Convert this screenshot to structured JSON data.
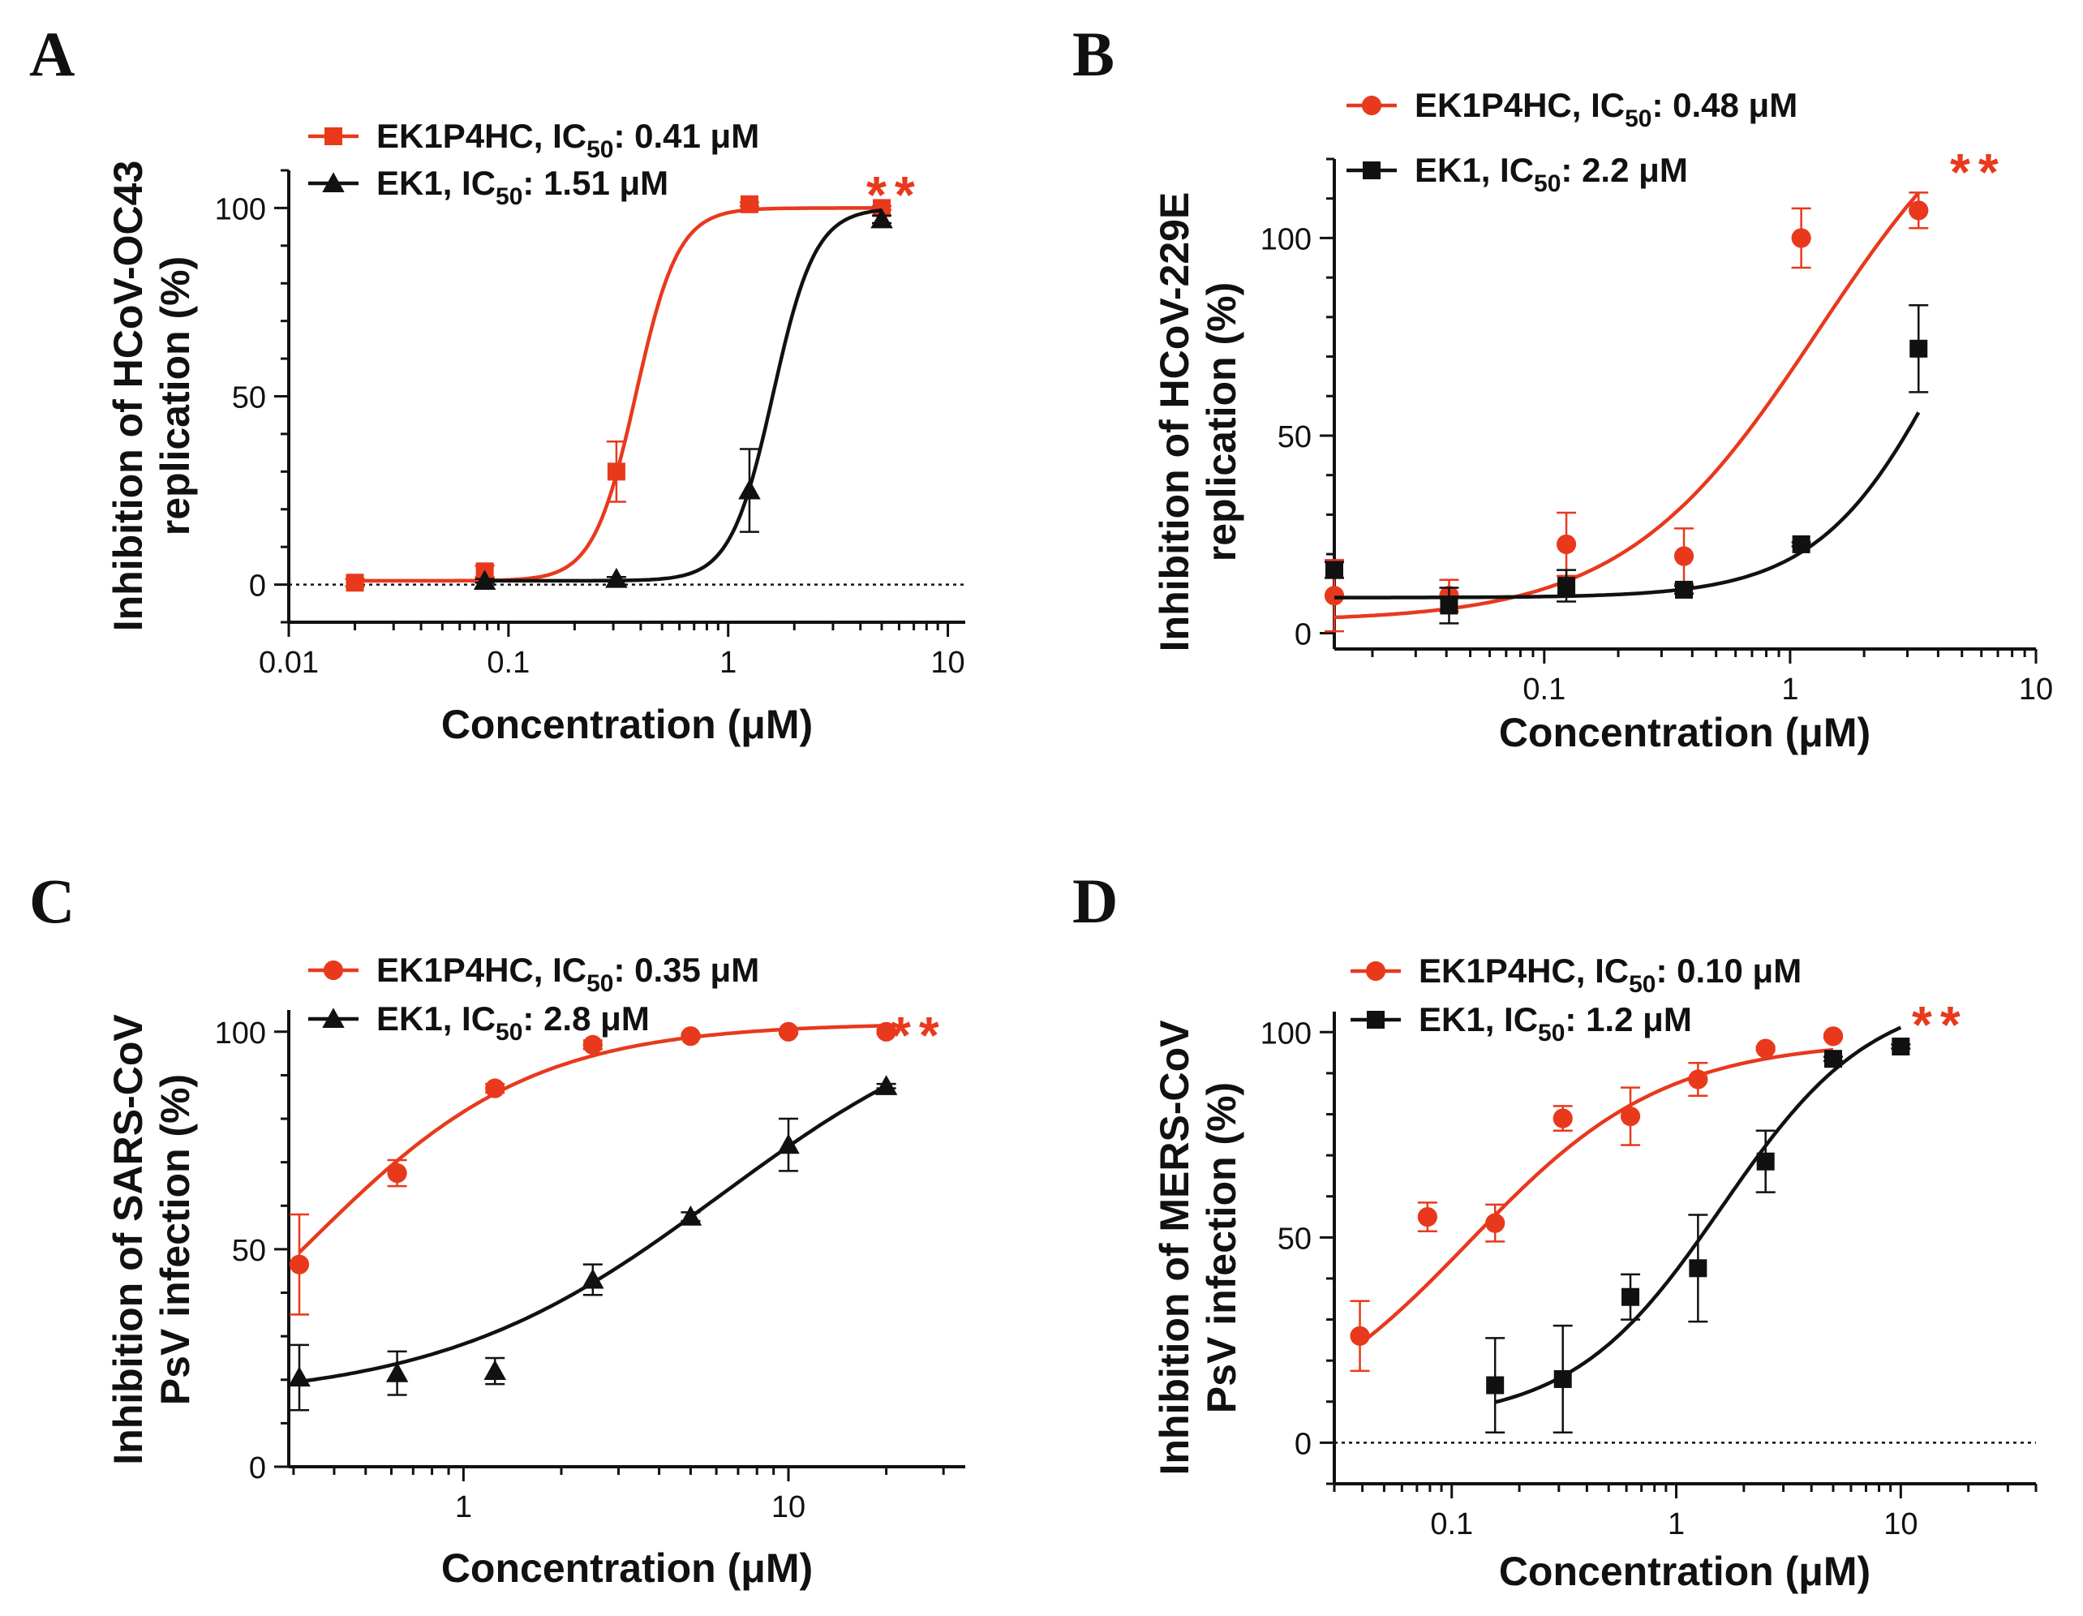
{
  "colors": {
    "ek1p4hc": "#e8391d",
    "ek1": "#111111",
    "axis": "#111111"
  },
  "icons": [
    "square-marker-icon",
    "circle-marker-icon",
    "triangle-marker-icon"
  ],
  "panels": [
    {
      "letter": "A"
    },
    {
      "letter": "B"
    },
    {
      "letter": "C"
    },
    {
      "letter": "D"
    }
  ],
  "chart_data": [
    {
      "panel": "A",
      "type": "scatter",
      "xscale": "log",
      "xlim": [
        0.01,
        12
      ],
      "ylim": [
        -10,
        110
      ],
      "x_ticks": [
        0.01,
        0.1,
        1,
        10
      ],
      "x_tick_labels": [
        "0.01",
        "0.1",
        "1",
        "10"
      ],
      "y_ticks": [
        0,
        50,
        100
      ],
      "y_tick_labels": [
        "0",
        "50",
        "100"
      ],
      "xlabel": "Concentration (μM)",
      "ylabel_lines": [
        "Inhibition of HCoV-OC43",
        "replication (%)"
      ],
      "zero_line": true,
      "significance": "**",
      "legend_position": "top-left",
      "series": [
        {
          "name": "EK1P4HC",
          "ic_prefix": "IC",
          "ic_sub": "50",
          "ic_value": ": 0.41 μM",
          "color": "#e8391d",
          "marker": "square",
          "x": [
            0.02,
            0.078,
            0.31,
            1.25,
            5.0
          ],
          "y": [
            0.5,
            3.5,
            30,
            101,
            100
          ],
          "err": [
            1,
            1.5,
            8,
            0.5,
            0.5
          ],
          "fit": {
            "bottom": 1,
            "top": 100,
            "ec50": 0.38,
            "hill": 4.5
          }
        },
        {
          "name": "EK1",
          "ic_prefix": "IC",
          "ic_sub": "50",
          "ic_value": ": 1.51 μM",
          "color": "#111111",
          "marker": "triangle",
          "x": [
            0.078,
            0.31,
            1.25,
            5.0
          ],
          "y": [
            1,
            1.5,
            25,
            97
          ],
          "err": [
            0.5,
            0.5,
            11,
            1
          ],
          "fit": {
            "bottom": 1,
            "top": 100,
            "ec50": 1.6,
            "hill": 4.5
          }
        }
      ]
    },
    {
      "panel": "B",
      "type": "scatter",
      "xscale": "log",
      "xlim": [
        0.014,
        10
      ],
      "ylim": [
        -4,
        120
      ],
      "x_ticks": [
        0.1,
        1,
        10
      ],
      "x_tick_labels": [
        "0.1",
        "1",
        "10"
      ],
      "y_ticks": [
        0,
        50,
        100
      ],
      "y_tick_labels": [
        "0",
        "50",
        "100"
      ],
      "xlabel": "Concentration (μM)",
      "ylabel_lines": [
        "Inhibition of HCoV-229E",
        "replication (%)"
      ],
      "zero_line": false,
      "significance": "**",
      "legend_position": "top-left",
      "series": [
        {
          "name": "EK1P4HC",
          "ic_prefix": "IC",
          "ic_sub": "50",
          "ic_value": ": 0.48 μM",
          "color": "#e8391d",
          "marker": "circle",
          "x": [
            0.014,
            0.041,
            0.123,
            0.37,
            1.11,
            3.33
          ],
          "y": [
            9.5,
            9.5,
            22.5,
            19.5,
            100,
            107
          ],
          "err": [
            9,
            4,
            8,
            7,
            7.5,
            4.5
          ],
          "fit": {
            "bottom": 3,
            "top": 150,
            "ec50": 1.3,
            "hill": 1.1
          }
        },
        {
          "name": "EK1",
          "ic_prefix": "IC",
          "ic_sub": "50",
          "ic_value": ": 2.2 μM",
          "color": "#111111",
          "marker": "square",
          "x": [
            0.014,
            0.041,
            0.123,
            0.37,
            1.11,
            3.33
          ],
          "y": [
            16,
            7,
            12,
            11,
            22.5,
            72
          ],
          "err": [
            2,
            4.5,
            4,
            1,
            0.5,
            11
          ],
          "fit": {
            "bottom": 9,
            "top": 140,
            "ec50": 4.8,
            "hill": 1.6
          }
        }
      ]
    },
    {
      "panel": "C",
      "type": "scatter",
      "xscale": "log",
      "xlim": [
        0.29,
        35
      ],
      "ylim": [
        0,
        105
      ],
      "x_ticks": [
        1,
        10
      ],
      "x_tick_labels": [
        "1",
        "10"
      ],
      "y_ticks": [
        0,
        50,
        100
      ],
      "y_tick_labels": [
        "0",
        "50",
        "100"
      ],
      "xlabel": "Concentration (μM)",
      "ylabel_lines": [
        "Inhibition of SARS-CoV",
        "PsV infection (%)"
      ],
      "zero_line": false,
      "significance": "**",
      "legend_position": "top-left",
      "series": [
        {
          "name": "EK1P4HC",
          "ic_prefix": "IC",
          "ic_sub": "50",
          "ic_value": ": 0.35 μM",
          "color": "#e8391d",
          "marker": "circle",
          "x": [
            0.3125,
            0.625,
            1.25,
            2.5,
            5,
            10,
            20
          ],
          "y": [
            46.5,
            67.5,
            87,
            97,
            99,
            100,
            100
          ],
          "err": [
            11.5,
            3,
            1,
            1,
            0.5,
            0.5,
            0.5
          ],
          "fit": {
            "bottom": 0,
            "top": 102,
            "ec50": 0.33,
            "hill": 1.25
          }
        },
        {
          "name": "EK1",
          "ic_prefix": "IC",
          "ic_sub": "50",
          "ic_value": ": 2.8 μM",
          "color": "#111111",
          "marker": "triangle",
          "x": [
            0.3125,
            0.625,
            1.25,
            2.5,
            5,
            10,
            20
          ],
          "y": [
            20.5,
            21.5,
            22,
            43,
            57.5,
            74,
            87.5
          ],
          "err": [
            7.5,
            5,
            3,
            3.5,
            1,
            6,
            0.5
          ],
          "fit": {
            "bottom": 15,
            "top": 110,
            "ec50": 6.2,
            "hill": 1.0
          }
        }
      ]
    },
    {
      "panel": "D",
      "type": "scatter",
      "xscale": "log",
      "xlim": [
        0.03,
        40
      ],
      "ylim": [
        -10,
        105
      ],
      "x_ticks": [
        0.1,
        1,
        10
      ],
      "x_tick_labels": [
        "0.1",
        "1",
        "10"
      ],
      "y_ticks": [
        0,
        50,
        100
      ],
      "y_tick_labels": [
        "0",
        "50",
        "100"
      ],
      "xlabel": "Concentration (μM)",
      "ylabel_lines": [
        "Inhibition of MERS-CoV",
        "PsV infection (%)"
      ],
      "zero_line": true,
      "significance": "**",
      "legend_position": "top-left",
      "series": [
        {
          "name": "EK1P4HC",
          "ic_prefix": "IC",
          "ic_sub": "50",
          "ic_value": ": 0.10 μM",
          "color": "#e8391d",
          "marker": "circle",
          "x": [
            0.039,
            0.078,
            0.156,
            0.3125,
            0.625,
            1.25,
            2.5,
            5
          ],
          "y": [
            26,
            55,
            53.5,
            79,
            79.5,
            88.5,
            96,
            99
          ],
          "err": [
            8.5,
            3.5,
            4.5,
            3,
            7,
            4,
            0.5,
            0.5
          ],
          "fit": {
            "bottom": 0,
            "top": 98,
            "ec50": 0.12,
            "hill": 1.0
          }
        },
        {
          "name": "EK1",
          "ic_prefix": "IC",
          "ic_sub": "50",
          "ic_value": ": 1.2 μM",
          "color": "#111111",
          "marker": "square",
          "x": [
            0.156,
            0.3125,
            0.625,
            1.25,
            2.5,
            5,
            10
          ],
          "y": [
            14,
            15.5,
            35.5,
            42.5,
            68.5,
            93.5,
            96.5
          ],
          "err": [
            11.5,
            13,
            5.5,
            13,
            7.5,
            0.5,
            0.5
          ],
          "fit": {
            "bottom": 5,
            "top": 110,
            "ec50": 1.6,
            "hill": 1.3
          }
        }
      ]
    }
  ]
}
